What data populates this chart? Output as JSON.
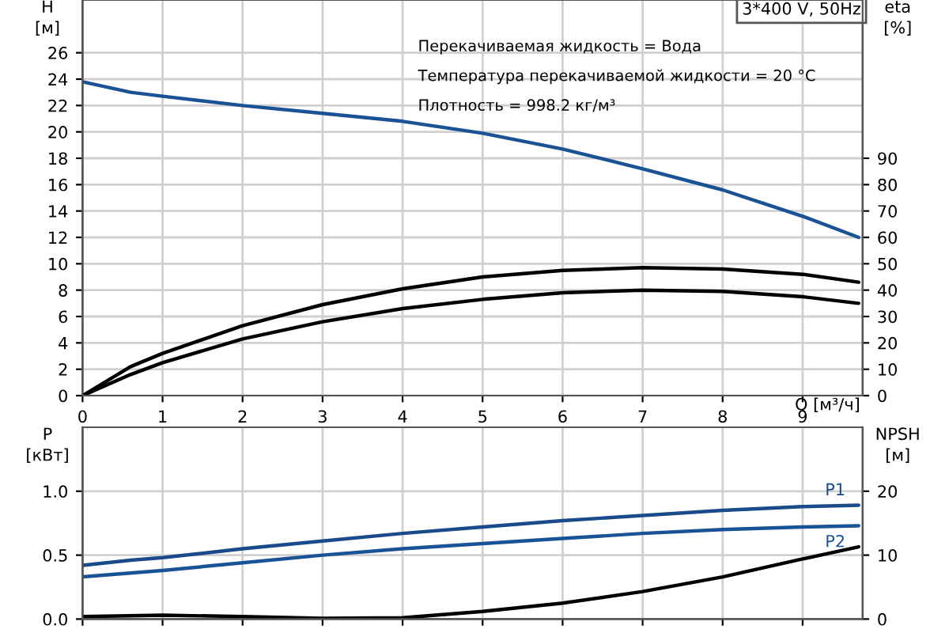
{
  "chart_data": [
    {
      "type": "line",
      "title": "3*400 V, 50Hz",
      "ylabel": "H\n[м]",
      "y2label": "eta\n[%]",
      "xlabel": "Q [м³/ч]",
      "annotations": [
        "Перекачиваемая жидкость = Вода",
        "Температура перекачиваемой жидкости = 20 °C",
        "Плотность = 998.2 кг/м³"
      ],
      "xlim": [
        0,
        9.75
      ],
      "xticks": [
        0,
        1,
        2,
        3,
        4,
        5,
        6,
        7,
        8,
        9
      ],
      "ylim": [
        0,
        30
      ],
      "yticks": [
        0,
        2,
        4,
        6,
        8,
        10,
        12,
        14,
        16,
        18,
        20,
        22,
        24,
        26
      ],
      "y2lim": [
        0,
        150
      ],
      "y2ticks": [
        0,
        10,
        20,
        30,
        40,
        50,
        60,
        70,
        80,
        90
      ],
      "grid": true,
      "legend": false,
      "series": [
        {
          "color": "#1a5296",
          "x": [
            0,
            0.6,
            1,
            2,
            3,
            4,
            5,
            6,
            7,
            8,
            9,
            9.7
          ],
          "values": [
            23.8,
            23.0,
            22.7,
            22.0,
            21.4,
            20.8,
            19.9,
            18.7,
            17.2,
            15.6,
            13.6,
            12.0
          ]
        },
        {
          "color": "#000000",
          "axis": "y2",
          "x": [
            0,
            0.6,
            1,
            2,
            3,
            4,
            5,
            6,
            7,
            8,
            9,
            9.7
          ],
          "values": [
            0,
            11,
            16,
            26.5,
            34.5,
            40.5,
            45,
            47.5,
            48.5,
            48,
            46,
            43
          ]
        },
        {
          "color": "#000000",
          "axis": "y2",
          "x": [
            0,
            0.6,
            1,
            2,
            3,
            4,
            5,
            6,
            7,
            8,
            9,
            9.7
          ],
          "values": [
            0,
            8,
            12.5,
            21.5,
            28,
            33,
            36.5,
            39,
            40,
            39.5,
            37.5,
            35
          ]
        }
      ]
    },
    {
      "type": "line",
      "ylabel": "P\n[кВт]",
      "y2label": "NPSH\n[м]",
      "xlim": [
        0,
        9.75
      ],
      "xticks": [
        0,
        1,
        2,
        3,
        4,
        5,
        6,
        7,
        8,
        9
      ],
      "tick_labels": "y",
      "ylim": [
        0,
        1.5
      ],
      "yticks": [
        {
          "value": 0,
          "label": "0.0"
        },
        {
          "value": 0.5,
          "label": "0.5"
        },
        {
          "value": 1,
          "label": "1.0"
        }
      ],
      "y2lim": [
        0,
        30
      ],
      "y2ticks": [
        0,
        10,
        20
      ],
      "grid": true,
      "legend": false,
      "series": [
        {
          "name": "P1",
          "color": "#1a4a8a",
          "x": [
            0,
            0.6,
            1,
            2,
            3,
            4,
            5,
            6,
            7,
            8,
            9,
            9.7
          ],
          "values": [
            0.42,
            0.46,
            0.48,
            0.55,
            0.61,
            0.67,
            0.72,
            0.77,
            0.81,
            0.85,
            0.88,
            0.89
          ]
        },
        {
          "name": "P2",
          "color": "#1a5296",
          "x": [
            0,
            1,
            2,
            3,
            4,
            5,
            6,
            7,
            8,
            9,
            9.7
          ],
          "values": [
            0.33,
            0.38,
            0.44,
            0.5,
            0.55,
            0.59,
            0.63,
            0.67,
            0.7,
            0.72,
            0.73
          ]
        },
        {
          "color": "#000000",
          "axis": "y2",
          "x": [
            0,
            1,
            2,
            3,
            4,
            5,
            6,
            7,
            8,
            9,
            9.7
          ],
          "values": [
            0.4,
            0.6,
            0.4,
            0.1,
            0.2,
            1.2,
            2.5,
            4.3,
            6.6,
            9.4,
            11.3
          ]
        }
      ]
    }
  ]
}
